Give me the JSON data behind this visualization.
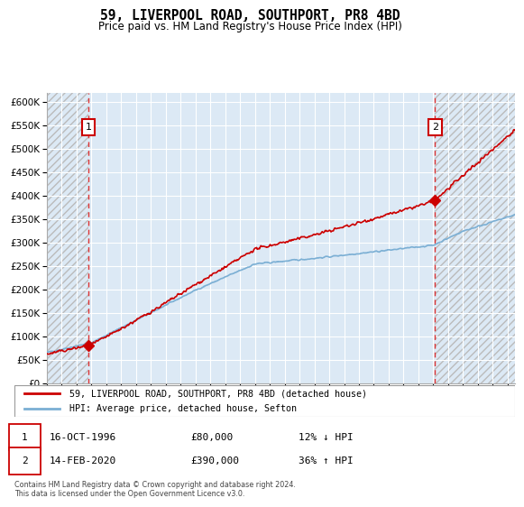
{
  "title": "59, LIVERPOOL ROAD, SOUTHPORT, PR8 4BD",
  "subtitle": "Price paid vs. HM Land Registry's House Price Index (HPI)",
  "legend_line1": "59, LIVERPOOL ROAD, SOUTHPORT, PR8 4BD (detached house)",
  "legend_line2": "HPI: Average price, detached house, Sefton",
  "annotation1_label": "1",
  "annotation1_date": "16-OCT-1996",
  "annotation1_price": "£80,000",
  "annotation1_hpi": "12% ↓ HPI",
  "annotation2_label": "2",
  "annotation2_date": "14-FEB-2020",
  "annotation2_price": "£390,000",
  "annotation2_hpi": "36% ↑ HPI",
  "footnote": "Contains HM Land Registry data © Crown copyright and database right 2024.\nThis data is licensed under the Open Government Licence v3.0.",
  "ylim": [
    0,
    620000
  ],
  "yticks": [
    0,
    50000,
    100000,
    150000,
    200000,
    250000,
    300000,
    350000,
    400000,
    450000,
    500000,
    550000,
    600000
  ],
  "background_color": "#dce9f5",
  "hatch_color": "#bbbbbb",
  "grid_color": "#ffffff",
  "line_color_hpi": "#7bafd4",
  "line_color_property": "#cc0000",
  "marker_color": "#cc0000",
  "vline_color": "#dd3333",
  "anno_box_color": "#cc0000",
  "sale1_x": 1996.79,
  "sale1_y": 80000,
  "sale2_x": 2020.12,
  "sale2_y": 390000,
  "xmin": 1994.0,
  "xmax": 2025.5
}
